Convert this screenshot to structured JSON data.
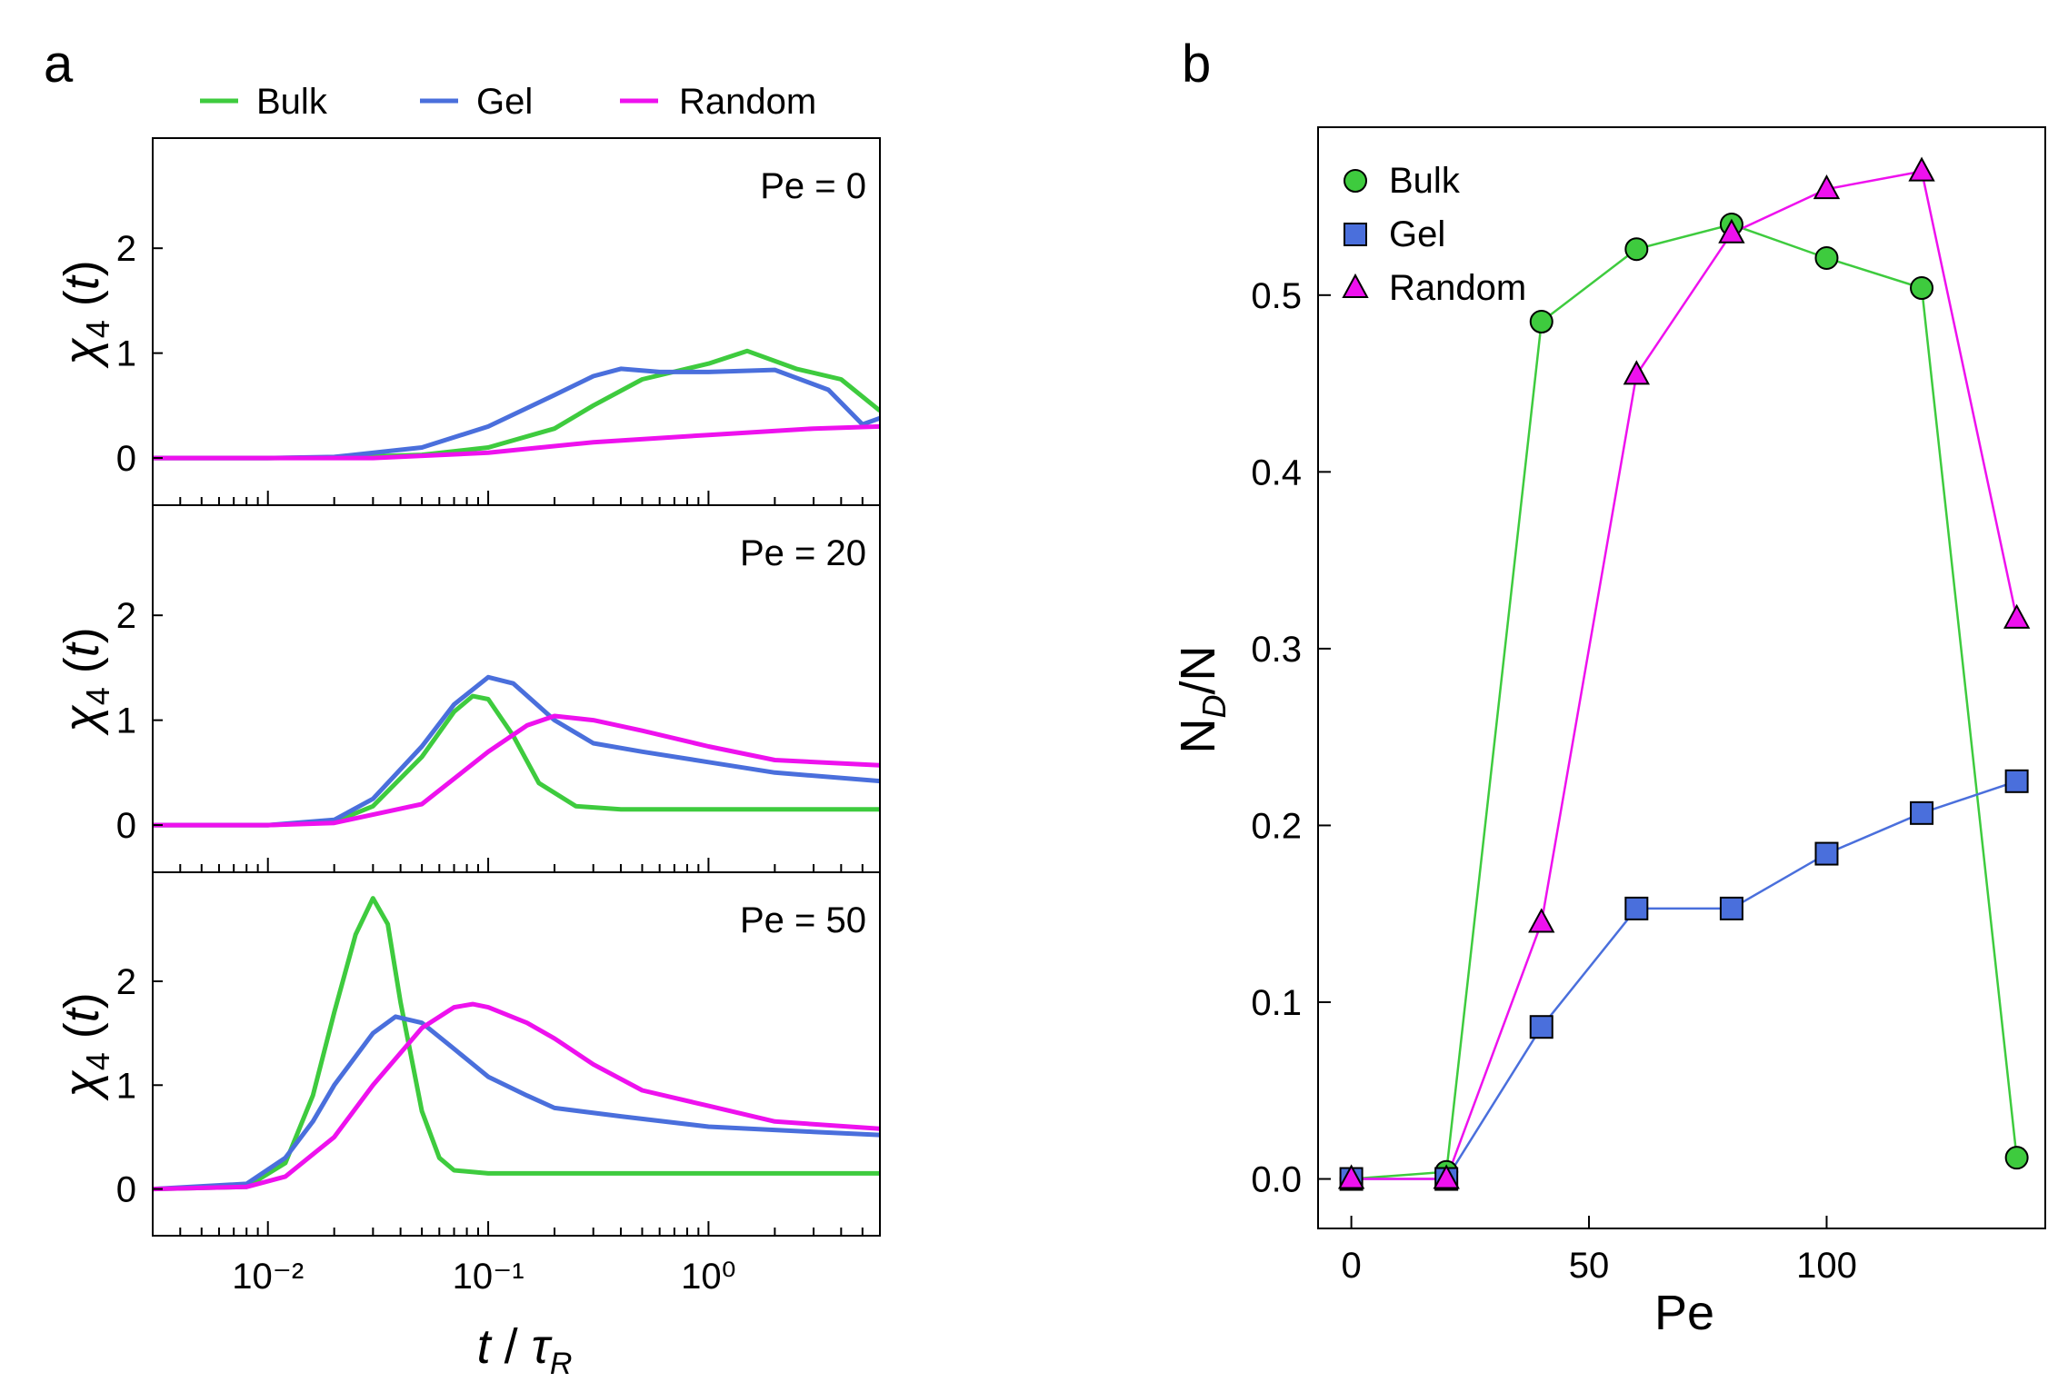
{
  "panel_labels": {
    "a": "a",
    "b": "b"
  },
  "legend_top": {
    "items": [
      "Bulk",
      "Gel",
      "Random"
    ]
  },
  "colors": {
    "Bulk": "#3ecb3e",
    "Gel": "#4a6fdc",
    "Random": "#ee11ee"
  },
  "chart_data": [
    {
      "type": "line",
      "panel": "a",
      "title": "",
      "xlabel": "t / τR",
      "ylabel": "χ4 (t)",
      "xscale": "log",
      "xlim": [
        0.003,
        6
      ],
      "ylim": [
        -0.45,
        3.05
      ],
      "x_ticks": [
        0.01,
        0.1,
        1
      ],
      "x_tick_labels": [
        "10⁻²",
        "10⁻¹",
        "10⁰"
      ],
      "y_ticks": [
        0,
        1,
        2
      ],
      "legend": "top",
      "subplots": [
        {
          "annotation": "Pe = 0",
          "series": [
            {
              "name": "Bulk",
              "x": [
                0.003,
                0.01,
                0.02,
                0.05,
                0.1,
                0.2,
                0.3,
                0.5,
                1.0,
                1.5,
                2.5,
                4.0,
                6.0
              ],
              "y": [
                0,
                0,
                0.005,
                0.03,
                0.1,
                0.28,
                0.5,
                0.75,
                0.9,
                1.02,
                0.85,
                0.75,
                0.45
              ]
            },
            {
              "name": "Gel",
              "x": [
                0.003,
                0.01,
                0.02,
                0.05,
                0.1,
                0.2,
                0.3,
                0.4,
                0.6,
                1.0,
                2.0,
                3.5,
                5.0,
                6.0
              ],
              "y": [
                0,
                0,
                0.01,
                0.1,
                0.3,
                0.6,
                0.78,
                0.85,
                0.82,
                0.82,
                0.84,
                0.65,
                0.32,
                0.38
              ]
            },
            {
              "name": "Random",
              "x": [
                0.003,
                0.01,
                0.03,
                0.1,
                0.3,
                1.0,
                3.0,
                6.0
              ],
              "y": [
                0,
                0,
                0,
                0.05,
                0.15,
                0.22,
                0.28,
                0.3
              ]
            }
          ]
        },
        {
          "annotation": "Pe = 20",
          "series": [
            {
              "name": "Bulk",
              "x": [
                0.003,
                0.01,
                0.02,
                0.03,
                0.05,
                0.07,
                0.085,
                0.1,
                0.13,
                0.17,
                0.25,
                0.4,
                1.0,
                6.0
              ],
              "y": [
                0,
                0,
                0.03,
                0.18,
                0.65,
                1.08,
                1.23,
                1.2,
                0.85,
                0.4,
                0.18,
                0.15,
                0.15,
                0.15
              ]
            },
            {
              "name": "Gel",
              "x": [
                0.003,
                0.01,
                0.02,
                0.03,
                0.05,
                0.07,
                0.1,
                0.13,
                0.2,
                0.3,
                0.5,
                1.0,
                2.0,
                6.0
              ],
              "y": [
                0,
                0,
                0.05,
                0.25,
                0.75,
                1.15,
                1.41,
                1.35,
                1.0,
                0.78,
                0.7,
                0.6,
                0.5,
                0.42
              ]
            },
            {
              "name": "Random",
              "x": [
                0.003,
                0.01,
                0.02,
                0.05,
                0.1,
                0.15,
                0.2,
                0.3,
                0.5,
                1.0,
                2.0,
                6.0
              ],
              "y": [
                0,
                0,
                0.02,
                0.2,
                0.7,
                0.95,
                1.04,
                1.0,
                0.9,
                0.75,
                0.62,
                0.57
              ]
            }
          ]
        },
        {
          "annotation": "Pe = 50",
          "series": [
            {
              "name": "Bulk",
              "x": [
                0.003,
                0.008,
                0.012,
                0.016,
                0.02,
                0.025,
                0.03,
                0.035,
                0.04,
                0.05,
                0.06,
                0.07,
                0.1,
                1.0,
                6.0
              ],
              "y": [
                0,
                0.02,
                0.25,
                0.9,
                1.7,
                2.45,
                2.8,
                2.55,
                1.8,
                0.75,
                0.3,
                0.18,
                0.15,
                0.15,
                0.15
              ]
            },
            {
              "name": "Gel",
              "x": [
                0.003,
                0.008,
                0.012,
                0.016,
                0.02,
                0.03,
                0.038,
                0.05,
                0.07,
                0.1,
                0.15,
                0.2,
                0.4,
                1.0,
                3.0,
                6.0
              ],
              "y": [
                0,
                0.05,
                0.3,
                0.65,
                1.0,
                1.5,
                1.66,
                1.6,
                1.35,
                1.08,
                0.9,
                0.78,
                0.7,
                0.6,
                0.55,
                0.52
              ]
            },
            {
              "name": "Random",
              "x": [
                0.003,
                0.008,
                0.012,
                0.02,
                0.03,
                0.05,
                0.07,
                0.085,
                0.1,
                0.15,
                0.2,
                0.3,
                0.5,
                1.0,
                2.0,
                6.0
              ],
              "y": [
                0,
                0.02,
                0.12,
                0.5,
                1.0,
                1.55,
                1.75,
                1.78,
                1.75,
                1.6,
                1.45,
                1.2,
                0.95,
                0.8,
                0.65,
                0.58
              ]
            }
          ]
        }
      ]
    },
    {
      "type": "line",
      "panel": "b",
      "title": "",
      "xlabel": "Pe",
      "ylabel": "ND/N",
      "xlim": [
        -7,
        146
      ],
      "ylim": [
        -0.028,
        0.595
      ],
      "x_ticks": [
        0,
        50,
        100
      ],
      "y_ticks": [
        0.0,
        0.1,
        0.2,
        0.3,
        0.4,
        0.5
      ],
      "y_tick_labels": [
        "0.0",
        "0.1",
        "0.2",
        "0.3",
        "0.4",
        "0.5"
      ],
      "legend": "top-left",
      "x": [
        0,
        20,
        40,
        60,
        80,
        100,
        120,
        140
      ],
      "series": [
        {
          "name": "Bulk",
          "marker": "circle",
          "values": [
            0.0,
            0.004,
            0.485,
            0.526,
            0.54,
            0.521,
            0.504,
            0.012
          ]
        },
        {
          "name": "Gel",
          "marker": "square",
          "values": [
            0.0,
            0.0,
            0.086,
            0.153,
            0.153,
            0.184,
            0.207,
            0.225
          ]
        },
        {
          "name": "Random",
          "marker": "triangle",
          "values": [
            0.0,
            0.0,
            0.145,
            0.455,
            0.535,
            0.56,
            0.57,
            0.317
          ]
        }
      ]
    }
  ]
}
